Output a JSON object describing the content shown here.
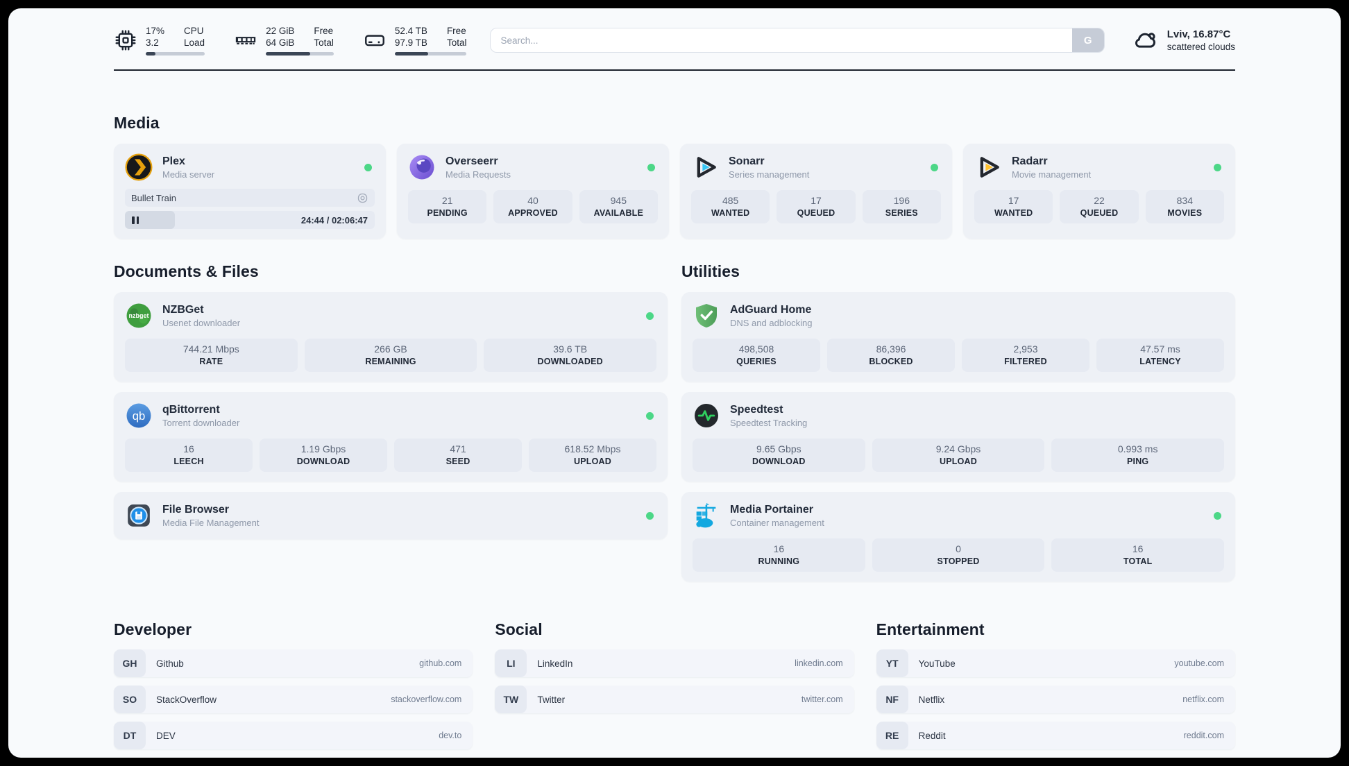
{
  "header": {
    "cpu": {
      "value_top": "17%",
      "value_bottom": "3.2",
      "label_top": "CPU",
      "label_bottom": "Load",
      "progress": 17
    },
    "ram": {
      "value_top": "22 GiB",
      "value_bottom": "64 GiB",
      "label_top": "Free",
      "label_bottom": "Total",
      "progress": 65
    },
    "storage": {
      "value_top": "52.4 TB",
      "value_bottom": "97.9 TB",
      "label_top": "Free",
      "label_bottom": "Total",
      "progress": 46
    },
    "search": {
      "placeholder": "Search...",
      "button_label": "G"
    },
    "weather": {
      "location_temp": "Lviv, 16.87°C",
      "condition": "scattered clouds"
    }
  },
  "sections": {
    "media": "Media",
    "documents": "Documents & Files",
    "utilities": "Utilities",
    "developer": "Developer",
    "social": "Social",
    "entertainment": "Entertainment"
  },
  "apps": {
    "plex": {
      "title": "Plex",
      "subtitle": "Media server",
      "player": {
        "title": "Bullet Train",
        "time": "24:44 / 02:06:47",
        "progress": 20
      }
    },
    "overseerr": {
      "title": "Overseerr",
      "subtitle": "Media Requests",
      "stats": [
        {
          "value": "21",
          "label": "PENDING"
        },
        {
          "value": "40",
          "label": "APPROVED"
        },
        {
          "value": "945",
          "label": "AVAILABLE"
        }
      ]
    },
    "sonarr": {
      "title": "Sonarr",
      "subtitle": "Series management",
      "stats": [
        {
          "value": "485",
          "label": "WANTED"
        },
        {
          "value": "17",
          "label": "QUEUED"
        },
        {
          "value": "196",
          "label": "SERIES"
        }
      ]
    },
    "radarr": {
      "title": "Radarr",
      "subtitle": "Movie management",
      "stats": [
        {
          "value": "17",
          "label": "WANTED"
        },
        {
          "value": "22",
          "label": "QUEUED"
        },
        {
          "value": "834",
          "label": "MOVIES"
        }
      ]
    },
    "nzbget": {
      "title": "NZBGet",
      "subtitle": "Usenet downloader",
      "icon_text": "nzbget",
      "stats": [
        {
          "value": "744.21 Mbps",
          "label": "RATE"
        },
        {
          "value": "266 GB",
          "label": "REMAINING"
        },
        {
          "value": "39.6 TB",
          "label": "DOWNLOADED"
        }
      ]
    },
    "qbittorrent": {
      "title": "qBittorrent",
      "subtitle": "Torrent downloader",
      "icon_text": "qb",
      "stats": [
        {
          "value": "16",
          "label": "LEECH"
        },
        {
          "value": "1.19 Gbps",
          "label": "DOWNLOAD"
        },
        {
          "value": "471",
          "label": "SEED"
        },
        {
          "value": "618.52 Mbps",
          "label": "UPLOAD"
        }
      ]
    },
    "filebrowser": {
      "title": "File Browser",
      "subtitle": "Media File Management"
    },
    "adguard": {
      "title": "AdGuard Home",
      "subtitle": "DNS and adblocking",
      "stats": [
        {
          "value": "498,508",
          "label": "QUERIES"
        },
        {
          "value": "86,396",
          "label": "BLOCKED"
        },
        {
          "value": "2,953",
          "label": "FILTERED"
        },
        {
          "value": "47.57 ms",
          "label": "LATENCY"
        }
      ]
    },
    "speedtest": {
      "title": "Speedtest",
      "subtitle": "Speedtest Tracking",
      "stats": [
        {
          "value": "9.65 Gbps",
          "label": "DOWNLOAD"
        },
        {
          "value": "9.24 Gbps",
          "label": "UPLOAD"
        },
        {
          "value": "0.993 ms",
          "label": "PING"
        }
      ]
    },
    "portainer": {
      "title": "Media Portainer",
      "subtitle": "Container management",
      "stats": [
        {
          "value": "16",
          "label": "RUNNING"
        },
        {
          "value": "0",
          "label": "STOPPED"
        },
        {
          "value": "16",
          "label": "TOTAL"
        }
      ]
    }
  },
  "links": {
    "developer": [
      {
        "abbr": "GH",
        "name": "Github",
        "url": "github.com"
      },
      {
        "abbr": "SO",
        "name": "StackOverflow",
        "url": "stackoverflow.com"
      },
      {
        "abbr": "DT",
        "name": "DEV",
        "url": "dev.to"
      }
    ],
    "social": [
      {
        "abbr": "LI",
        "name": "LinkedIn",
        "url": "linkedin.com"
      },
      {
        "abbr": "TW",
        "name": "Twitter",
        "url": "twitter.com"
      }
    ],
    "entertainment": [
      {
        "abbr": "YT",
        "name": "YouTube",
        "url": "youtube.com"
      },
      {
        "abbr": "NF",
        "name": "Netflix",
        "url": "netflix.com"
      },
      {
        "abbr": "RE",
        "name": "Reddit",
        "url": "reddit.com"
      }
    ]
  },
  "colors": {
    "status_green": "#4cd787",
    "plex_amber": "#e5a00d",
    "sonarr_cyan": "#38c6f4",
    "radarr_amber": "#ffc230",
    "nzbget_green": "#3f9e3f",
    "qbittorrent_blue": "#3876c2",
    "adguard_green": "#5fb568",
    "speedtest_green": "#2fd05f",
    "portainer_blue": "#13a8e0",
    "overseerr_purple": "#7a5ce0"
  }
}
